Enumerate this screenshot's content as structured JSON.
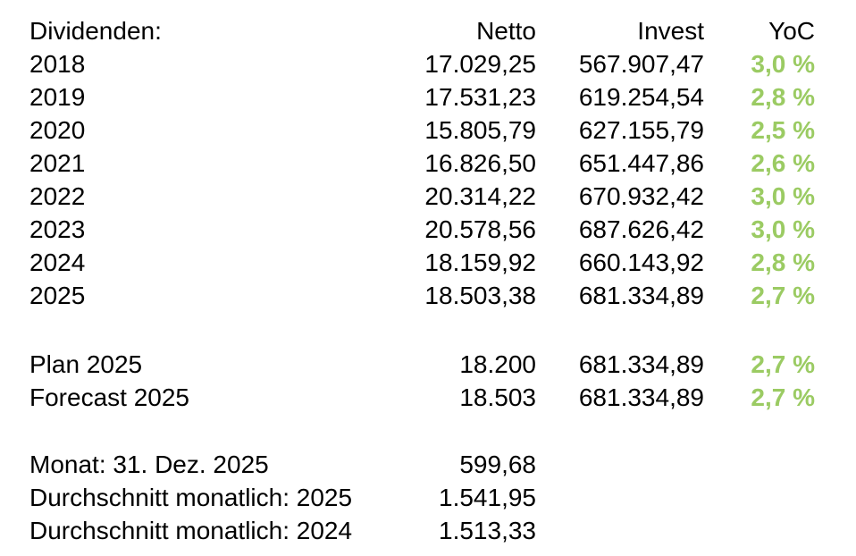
{
  "title": "Dividenden:",
  "columns": {
    "netto": "Netto",
    "invest": "Invest",
    "yoc": "YoC"
  },
  "years": [
    {
      "label": "2018",
      "netto": "17.029,25",
      "invest": "567.907,47",
      "yoc": "3,0 %"
    },
    {
      "label": "2019",
      "netto": "17.531,23",
      "invest": "619.254,54",
      "yoc": "2,8 %"
    },
    {
      "label": "2020",
      "netto": "15.805,79",
      "invest": "627.155,79",
      "yoc": "2,5 %"
    },
    {
      "label": "2021",
      "netto": "16.826,50",
      "invest": "651.447,86",
      "yoc": "2,6 %"
    },
    {
      "label": "2022",
      "netto": "20.314,22",
      "invest": "670.932,42",
      "yoc": "3,0 %"
    },
    {
      "label": "2023",
      "netto": "20.578,56",
      "invest": "687.626,42",
      "yoc": "3,0 %"
    },
    {
      "label": "2024",
      "netto": "18.159,92",
      "invest": "660.143,92",
      "yoc": "2,8 %"
    },
    {
      "label": "2025",
      "netto": "18.503,38",
      "invest": "681.334,89",
      "yoc": "2,7 %"
    }
  ],
  "projections": [
    {
      "label": "Plan 2025",
      "netto": "18.200",
      "invest": "681.334,89",
      "yoc": "2,7 %"
    },
    {
      "label": "Forecast 2025",
      "netto": "18.503",
      "invest": "681.334,89",
      "yoc": "2,7 %"
    }
  ],
  "monthly": [
    {
      "label": "Monat: 31. Dez. 2025",
      "value": "599,68"
    },
    {
      "label": "Durchschnitt monatlich: 2025",
      "value": "1.541,95"
    },
    {
      "label": "Durchschnitt monatlich: 2024",
      "value": "1.513,33"
    }
  ],
  "colors": {
    "yoc_green": "#9bcb63",
    "text": "#000000",
    "background": "#ffffff"
  }
}
